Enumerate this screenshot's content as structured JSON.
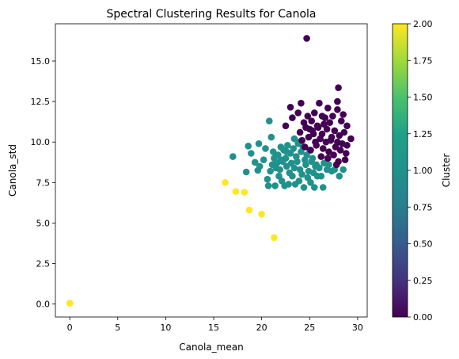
{
  "chart_data": {
    "type": "scatter",
    "title": "Spectral Clustering Results for Canola",
    "xlabel": "Canola_mean",
    "ylabel": "Canola_std",
    "xlim": [
      -1.5,
      31
    ],
    "ylim": [
      -0.8,
      17.3
    ],
    "xticks": [
      0,
      5,
      10,
      15,
      20,
      25,
      30
    ],
    "xtick_labels": [
      "0",
      "5",
      "10",
      "15",
      "20",
      "25",
      "30"
    ],
    "yticks": [
      0.0,
      2.5,
      5.0,
      7.5,
      10.0,
      12.5,
      15.0
    ],
    "ytick_labels": [
      "0.0",
      "2.5",
      "5.0",
      "7.5",
      "10.0",
      "12.5",
      "15.0"
    ],
    "grid": false,
    "colormap": "viridis",
    "colorbar": {
      "label": "Cluster",
      "range": [
        0.0,
        2.0
      ],
      "ticks": [
        0.0,
        0.25,
        0.5,
        0.75,
        1.0,
        1.25,
        1.5,
        1.75,
        2.0
      ],
      "tick_labels": [
        "0.00",
        "0.25",
        "0.50",
        "0.75",
        "1.00",
        "1.25",
        "1.50",
        "1.75",
        "2.00"
      ]
    },
    "cluster_colors": {
      "0": "#440154",
      "1": "#21918c",
      "2": "#fde725"
    },
    "series": [
      {
        "cluster": 2,
        "points": [
          [
            0.0,
            0.05
          ],
          [
            16.2,
            7.5
          ],
          [
            17.3,
            6.95
          ],
          [
            18.2,
            6.9
          ],
          [
            18.7,
            5.8
          ],
          [
            20.0,
            5.55
          ],
          [
            21.3,
            4.1
          ]
        ]
      },
      {
        "cluster": 1,
        "points": [
          [
            17.0,
            9.1
          ],
          [
            18.4,
            8.15
          ],
          [
            18.6,
            9.75
          ],
          [
            18.9,
            9.3
          ],
          [
            19.3,
            8.75
          ],
          [
            19.6,
            8.25
          ],
          [
            19.8,
            8.5
          ],
          [
            19.7,
            9.9
          ],
          [
            20.2,
            8.9
          ],
          [
            20.4,
            9.6
          ],
          [
            20.6,
            7.7
          ],
          [
            20.7,
            7.3
          ],
          [
            20.8,
            11.3
          ],
          [
            20.9,
            8.2
          ],
          [
            21.0,
            10.3
          ],
          [
            21.2,
            9.4
          ],
          [
            21.3,
            9.0
          ],
          [
            21.4,
            7.3
          ],
          [
            21.5,
            8.4
          ],
          [
            21.6,
            8.7
          ],
          [
            21.7,
            9.2
          ],
          [
            21.8,
            7.9
          ],
          [
            21.9,
            8.3
          ],
          [
            22.0,
            9.7
          ],
          [
            22.1,
            7.6
          ],
          [
            22.2,
            8.8
          ],
          [
            22.3,
            9.5
          ],
          [
            22.4,
            7.3
          ],
          [
            22.5,
            9.0
          ],
          [
            22.6,
            8.5
          ],
          [
            22.7,
            9.8
          ],
          [
            22.8,
            7.4
          ],
          [
            22.9,
            8.1
          ],
          [
            23.0,
            9.3
          ],
          [
            23.1,
            8.7
          ],
          [
            23.2,
            7.9
          ],
          [
            23.3,
            9.6
          ],
          [
            23.4,
            8.4
          ],
          [
            23.5,
            7.4
          ],
          [
            23.6,
            9.1
          ],
          [
            23.7,
            8.8
          ],
          [
            23.8,
            9.9
          ],
          [
            23.9,
            7.6
          ],
          [
            24.0,
            8.3
          ],
          [
            24.1,
            9.4
          ],
          [
            24.2,
            8.0
          ],
          [
            24.3,
            9.7
          ],
          [
            24.4,
            7.2
          ],
          [
            24.5,
            8.9
          ],
          [
            24.6,
            8.6
          ],
          [
            24.7,
            9.2
          ],
          [
            24.8,
            7.8
          ],
          [
            24.9,
            8.2
          ],
          [
            25.0,
            9.5
          ],
          [
            25.1,
            7.5
          ],
          [
            25.2,
            8.8
          ],
          [
            25.3,
            9.0
          ],
          [
            25.4,
            8.1
          ],
          [
            25.5,
            7.2
          ],
          [
            25.6,
            8.5
          ],
          [
            25.7,
            8.6
          ],
          [
            25.8,
            7.9
          ],
          [
            26.0,
            8.4
          ],
          [
            26.2,
            7.9
          ],
          [
            26.4,
            7.2
          ],
          [
            26.5,
            8.7
          ],
          [
            26.8,
            8.3
          ],
          [
            27.0,
            8.6
          ],
          [
            27.3,
            8.2
          ],
          [
            27.6,
            8.3
          ],
          [
            28.1,
            7.9
          ],
          [
            28.5,
            8.3
          ],
          [
            23.4,
            10.2
          ],
          [
            23.8,
            10.0
          ],
          [
            22.6,
            9.4
          ],
          [
            24.2,
            10.1
          ],
          [
            21.1,
            8.6
          ],
          [
            22.0,
            8.9
          ]
        ]
      },
      {
        "cluster": 0,
        "points": [
          [
            24.7,
            16.4
          ],
          [
            28.0,
            13.35
          ],
          [
            23.0,
            12.15
          ],
          [
            24.1,
            12.4
          ],
          [
            26.0,
            12.4
          ],
          [
            27.9,
            12.5
          ],
          [
            23.8,
            11.8
          ],
          [
            24.8,
            11.6
          ],
          [
            25.5,
            11.8
          ],
          [
            26.9,
            12.1
          ],
          [
            27.4,
            11.6
          ],
          [
            28.5,
            11.7
          ],
          [
            22.5,
            11.0
          ],
          [
            23.2,
            11.5
          ],
          [
            24.4,
            11.2
          ],
          [
            25.2,
            11.3
          ],
          [
            25.8,
            11.0
          ],
          [
            26.6,
            11.5
          ],
          [
            27.1,
            11.2
          ],
          [
            28.3,
            11.3
          ],
          [
            28.9,
            11.0
          ],
          [
            24.0,
            10.6
          ],
          [
            24.6,
            10.9
          ],
          [
            25.3,
            10.7
          ],
          [
            25.9,
            10.9
          ],
          [
            26.3,
            10.5
          ],
          [
            26.8,
            10.8
          ],
          [
            27.6,
            10.7
          ],
          [
            28.1,
            10.4
          ],
          [
            28.6,
            10.6
          ],
          [
            29.3,
            10.2
          ],
          [
            24.2,
            10.1
          ],
          [
            24.9,
            10.3
          ],
          [
            25.6,
            10.0
          ],
          [
            26.1,
            10.2
          ],
          [
            26.7,
            10.0
          ],
          [
            27.3,
            10.3
          ],
          [
            27.9,
            10.0
          ],
          [
            28.4,
            9.9
          ],
          [
            24.5,
            9.7
          ],
          [
            25.1,
            9.5
          ],
          [
            25.7,
            9.8
          ],
          [
            26.4,
            9.6
          ],
          [
            27.0,
            9.4
          ],
          [
            27.7,
            9.7
          ],
          [
            28.2,
            9.5
          ],
          [
            28.8,
            9.3
          ],
          [
            26.2,
            9.1
          ],
          [
            26.9,
            9.0
          ],
          [
            27.5,
            9.2
          ],
          [
            28.0,
            8.8
          ],
          [
            28.7,
            8.9
          ],
          [
            27.8,
            8.6
          ],
          [
            25.4,
            10.5
          ],
          [
            26.5,
            11.1
          ],
          [
            27.2,
            10.1
          ],
          [
            28.9,
            9.8
          ],
          [
            25.0,
            10.8
          ],
          [
            27.9,
            12.0
          ],
          [
            26.3,
            11.6
          ]
        ]
      }
    ]
  }
}
